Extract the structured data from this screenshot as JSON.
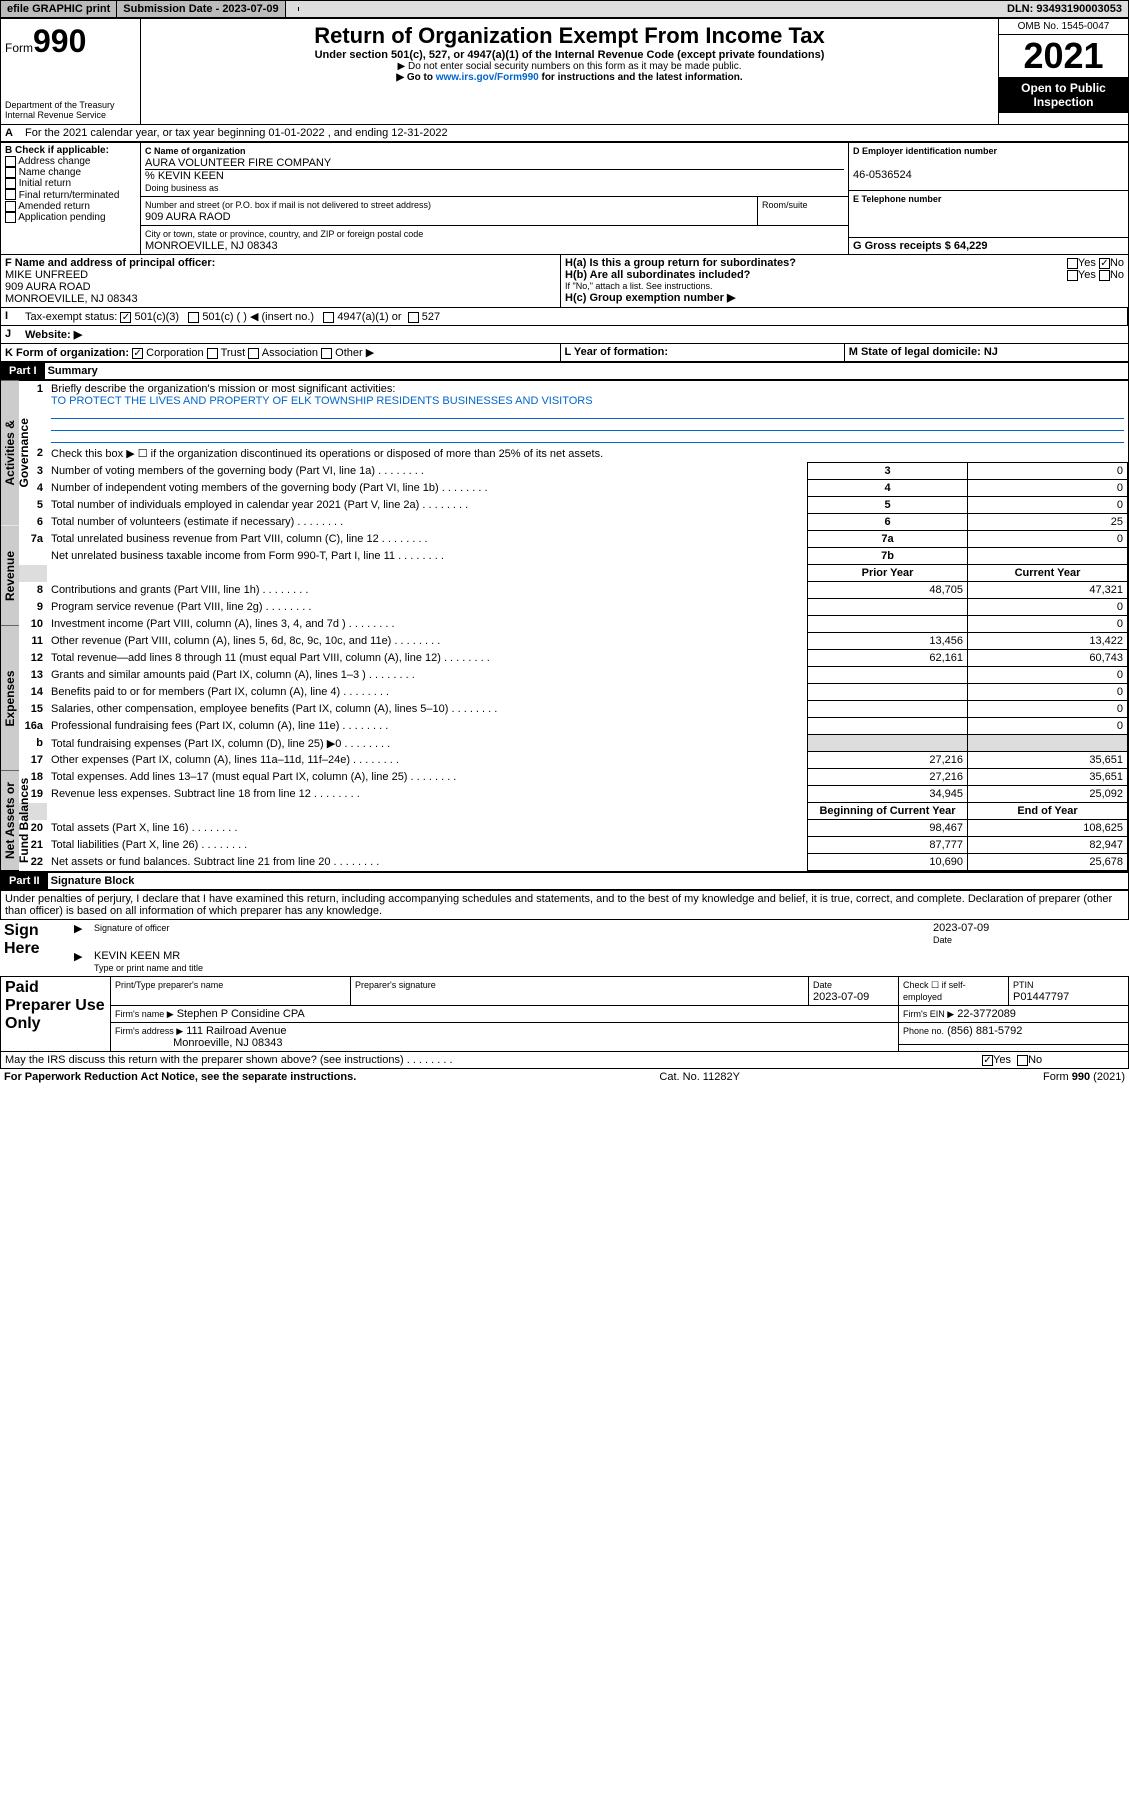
{
  "topbar": {
    "efile": "efile GRAPHIC print",
    "submission_label": "Submission Date - 2023-07-09",
    "dln": "DLN: 93493190003053"
  },
  "header": {
    "form_label": "Form",
    "form_number": "990",
    "title": "Return of Organization Exempt From Income Tax",
    "subtitle": "Under section 501(c), 527, or 4947(a)(1) of the Internal Revenue Code (except private foundations)",
    "note1": "▶ Do not enter social security numbers on this form as it may be made public.",
    "note2_prefix": "▶ Go to ",
    "note2_link": "www.irs.gov/Form990",
    "note2_suffix": " for instructions and the latest information.",
    "dept": "Department of the Treasury\nInternal Revenue Service",
    "omb": "OMB No. 1545-0047",
    "year": "2021",
    "open": "Open to Public Inspection"
  },
  "sectionA": {
    "period": "For the 2021 calendar year, or tax year beginning 01-01-2022   , and ending 12-31-2022",
    "B_label": "B Check if applicable:",
    "B_items": [
      "Address change",
      "Name change",
      "Initial return",
      "Final return/terminated",
      "Amended return",
      "Application pending"
    ],
    "C_name_label": "C Name of organization",
    "C_name": "AURA VOLUNTEER FIRE COMPANY",
    "C_careof_label": "% KEVIN KEEN",
    "C_dba_label": "Doing business as",
    "C_street_label": "Number and street (or P.O. box if mail is not delivered to street address)",
    "C_street": "909 AURA RAOD",
    "C_room_label": "Room/suite",
    "C_city_label": "City or town, state or province, country, and ZIP or foreign postal code",
    "C_city": "MONROEVILLE, NJ  08343",
    "D_label": "D Employer identification number",
    "D_value": "46-0536524",
    "E_label": "E Telephone number",
    "G_label": "G Gross receipts $ 64,229",
    "F_label": "F Name and address of principal officer:",
    "F_name": "MIKE UNFREED",
    "F_addr1": "909 AURA ROAD",
    "F_addr2": "MONROEVILLE, NJ  08343",
    "Ha_label": "H(a)  Is this a group return for subordinates?",
    "Hb_label": "H(b)  Are all subordinates included?",
    "H_note": "If \"No,\" attach a list. See instructions.",
    "Hc_label": "H(c)  Group exemption number ▶",
    "yes": "Yes",
    "no": "No",
    "I_label": "Tax-exempt status:",
    "I_501c3": "501(c)(3)",
    "I_501c": "501(c) (  ) ◀ (insert no.)",
    "I_4947": "4947(a)(1) or",
    "I_527": "527",
    "J_label": "Website: ▶",
    "K_label": "K Form of organization:",
    "K_corp": "Corporation",
    "K_trust": "Trust",
    "K_assoc": "Association",
    "K_other": "Other ▶",
    "L_label": "L Year of formation:",
    "M_label": "M State of legal domicile: NJ"
  },
  "part1": {
    "label": "Part I",
    "title": "Summary",
    "tab_gov": "Activities & Governance",
    "tab_rev": "Revenue",
    "tab_exp": "Expenses",
    "tab_net": "Net Assets or Fund Balances",
    "line1_label": "Briefly describe the organization's mission or most significant activities:",
    "line1_text": "TO PROTECT THE LIVES AND PROPERTY OF ELK TOWNSHIP RESIDENTS BUSINESSES AND VISITORS",
    "line2": "Check this box ▶ ☐  if the organization discontinued its operations or disposed of more than 25% of its net assets.",
    "lines_gov": [
      {
        "n": "3",
        "t": "Number of voting members of the governing body (Part VI, line 1a)",
        "box": "3",
        "v": "0"
      },
      {
        "n": "4",
        "t": "Number of independent voting members of the governing body (Part VI, line 1b)",
        "box": "4",
        "v": "0"
      },
      {
        "n": "5",
        "t": "Total number of individuals employed in calendar year 2021 (Part V, line 2a)",
        "box": "5",
        "v": "0"
      },
      {
        "n": "6",
        "t": "Total number of volunteers (estimate if necessary)",
        "box": "6",
        "v": "25"
      },
      {
        "n": "7a",
        "t": "Total unrelated business revenue from Part VIII, column (C), line 12",
        "box": "7a",
        "v": "0"
      },
      {
        "n": "",
        "t": "Net unrelated business taxable income from Form 990-T, Part I, line 11",
        "box": "7b",
        "v": ""
      }
    ],
    "col_prior": "Prior Year",
    "col_current": "Current Year",
    "col_begin": "Beginning of Current Year",
    "col_end": "End of Year",
    "lines_rev": [
      {
        "n": "8",
        "t": "Contributions and grants (Part VIII, line 1h)",
        "p": "48,705",
        "c": "47,321"
      },
      {
        "n": "9",
        "t": "Program service revenue (Part VIII, line 2g)",
        "p": "",
        "c": "0"
      },
      {
        "n": "10",
        "t": "Investment income (Part VIII, column (A), lines 3, 4, and 7d )",
        "p": "",
        "c": "0"
      },
      {
        "n": "11",
        "t": "Other revenue (Part VIII, column (A), lines 5, 6d, 8c, 9c, 10c, and 11e)",
        "p": "13,456",
        "c": "13,422"
      },
      {
        "n": "12",
        "t": "Total revenue—add lines 8 through 11 (must equal Part VIII, column (A), line 12)",
        "p": "62,161",
        "c": "60,743"
      }
    ],
    "lines_exp": [
      {
        "n": "13",
        "t": "Grants and similar amounts paid (Part IX, column (A), lines 1–3 )",
        "p": "",
        "c": "0"
      },
      {
        "n": "14",
        "t": "Benefits paid to or for members (Part IX, column (A), line 4)",
        "p": "",
        "c": "0"
      },
      {
        "n": "15",
        "t": "Salaries, other compensation, employee benefits (Part IX, column (A), lines 5–10)",
        "p": "",
        "c": "0"
      },
      {
        "n": "16a",
        "t": "Professional fundraising fees (Part IX, column (A), line 11e)",
        "p": "",
        "c": "0"
      },
      {
        "n": "b",
        "t": "Total fundraising expenses (Part IX, column (D), line 25) ▶0",
        "p": "shade",
        "c": "shade"
      },
      {
        "n": "17",
        "t": "Other expenses (Part IX, column (A), lines 11a–11d, 11f–24e)",
        "p": "27,216",
        "c": "35,651"
      },
      {
        "n": "18",
        "t": "Total expenses. Add lines 13–17 (must equal Part IX, column (A), line 25)",
        "p": "27,216",
        "c": "35,651"
      },
      {
        "n": "19",
        "t": "Revenue less expenses. Subtract line 18 from line 12",
        "p": "34,945",
        "c": "25,092"
      }
    ],
    "lines_net": [
      {
        "n": "20",
        "t": "Total assets (Part X, line 16)",
        "p": "98,467",
        "c": "108,625"
      },
      {
        "n": "21",
        "t": "Total liabilities (Part X, line 26)",
        "p": "87,777",
        "c": "82,947"
      },
      {
        "n": "22",
        "t": "Net assets or fund balances. Subtract line 21 from line 20",
        "p": "10,690",
        "c": "25,678"
      }
    ]
  },
  "part2": {
    "label": "Part II",
    "title": "Signature Block",
    "declaration": "Under penalties of perjury, I declare that I have examined this return, including accompanying schedules and statements, and to the best of my knowledge and belief, it is true, correct, and complete. Declaration of preparer (other than officer) is based on all information of which preparer has any knowledge.",
    "sign_here": "Sign Here",
    "sig_officer": "Signature of officer",
    "sig_date": "2023-07-09",
    "date_label": "Date",
    "officer_name": "KEVIN KEEN MR",
    "officer_title_label": "Type or print name and title",
    "paid": "Paid Preparer Use Only",
    "prep_name_label": "Print/Type preparer's name",
    "prep_sig_label": "Preparer's signature",
    "prep_date_label": "Date",
    "prep_date": "2023-07-09",
    "prep_check": "Check ☐ if self-employed",
    "ptin_label": "PTIN",
    "ptin": "P01447797",
    "firm_name_label": "Firm's name      ▶",
    "firm_name": "Stephen P Considine CPA",
    "firm_ein_label": "Firm's EIN ▶",
    "firm_ein": "22-3772089",
    "firm_addr_label": "Firm's address ▶",
    "firm_addr1": "111 Railroad Avenue",
    "firm_addr2": "Monroeville, NJ  08343",
    "phone_label": "Phone no.",
    "phone": "(856) 881-5792",
    "discuss": "May the IRS discuss this return with the preparer shown above? (see instructions)"
  },
  "footer": {
    "paperwork": "For Paperwork Reduction Act Notice, see the separate instructions.",
    "cat": "Cat. No. 11282Y",
    "form": "Form 990 (2021)"
  }
}
